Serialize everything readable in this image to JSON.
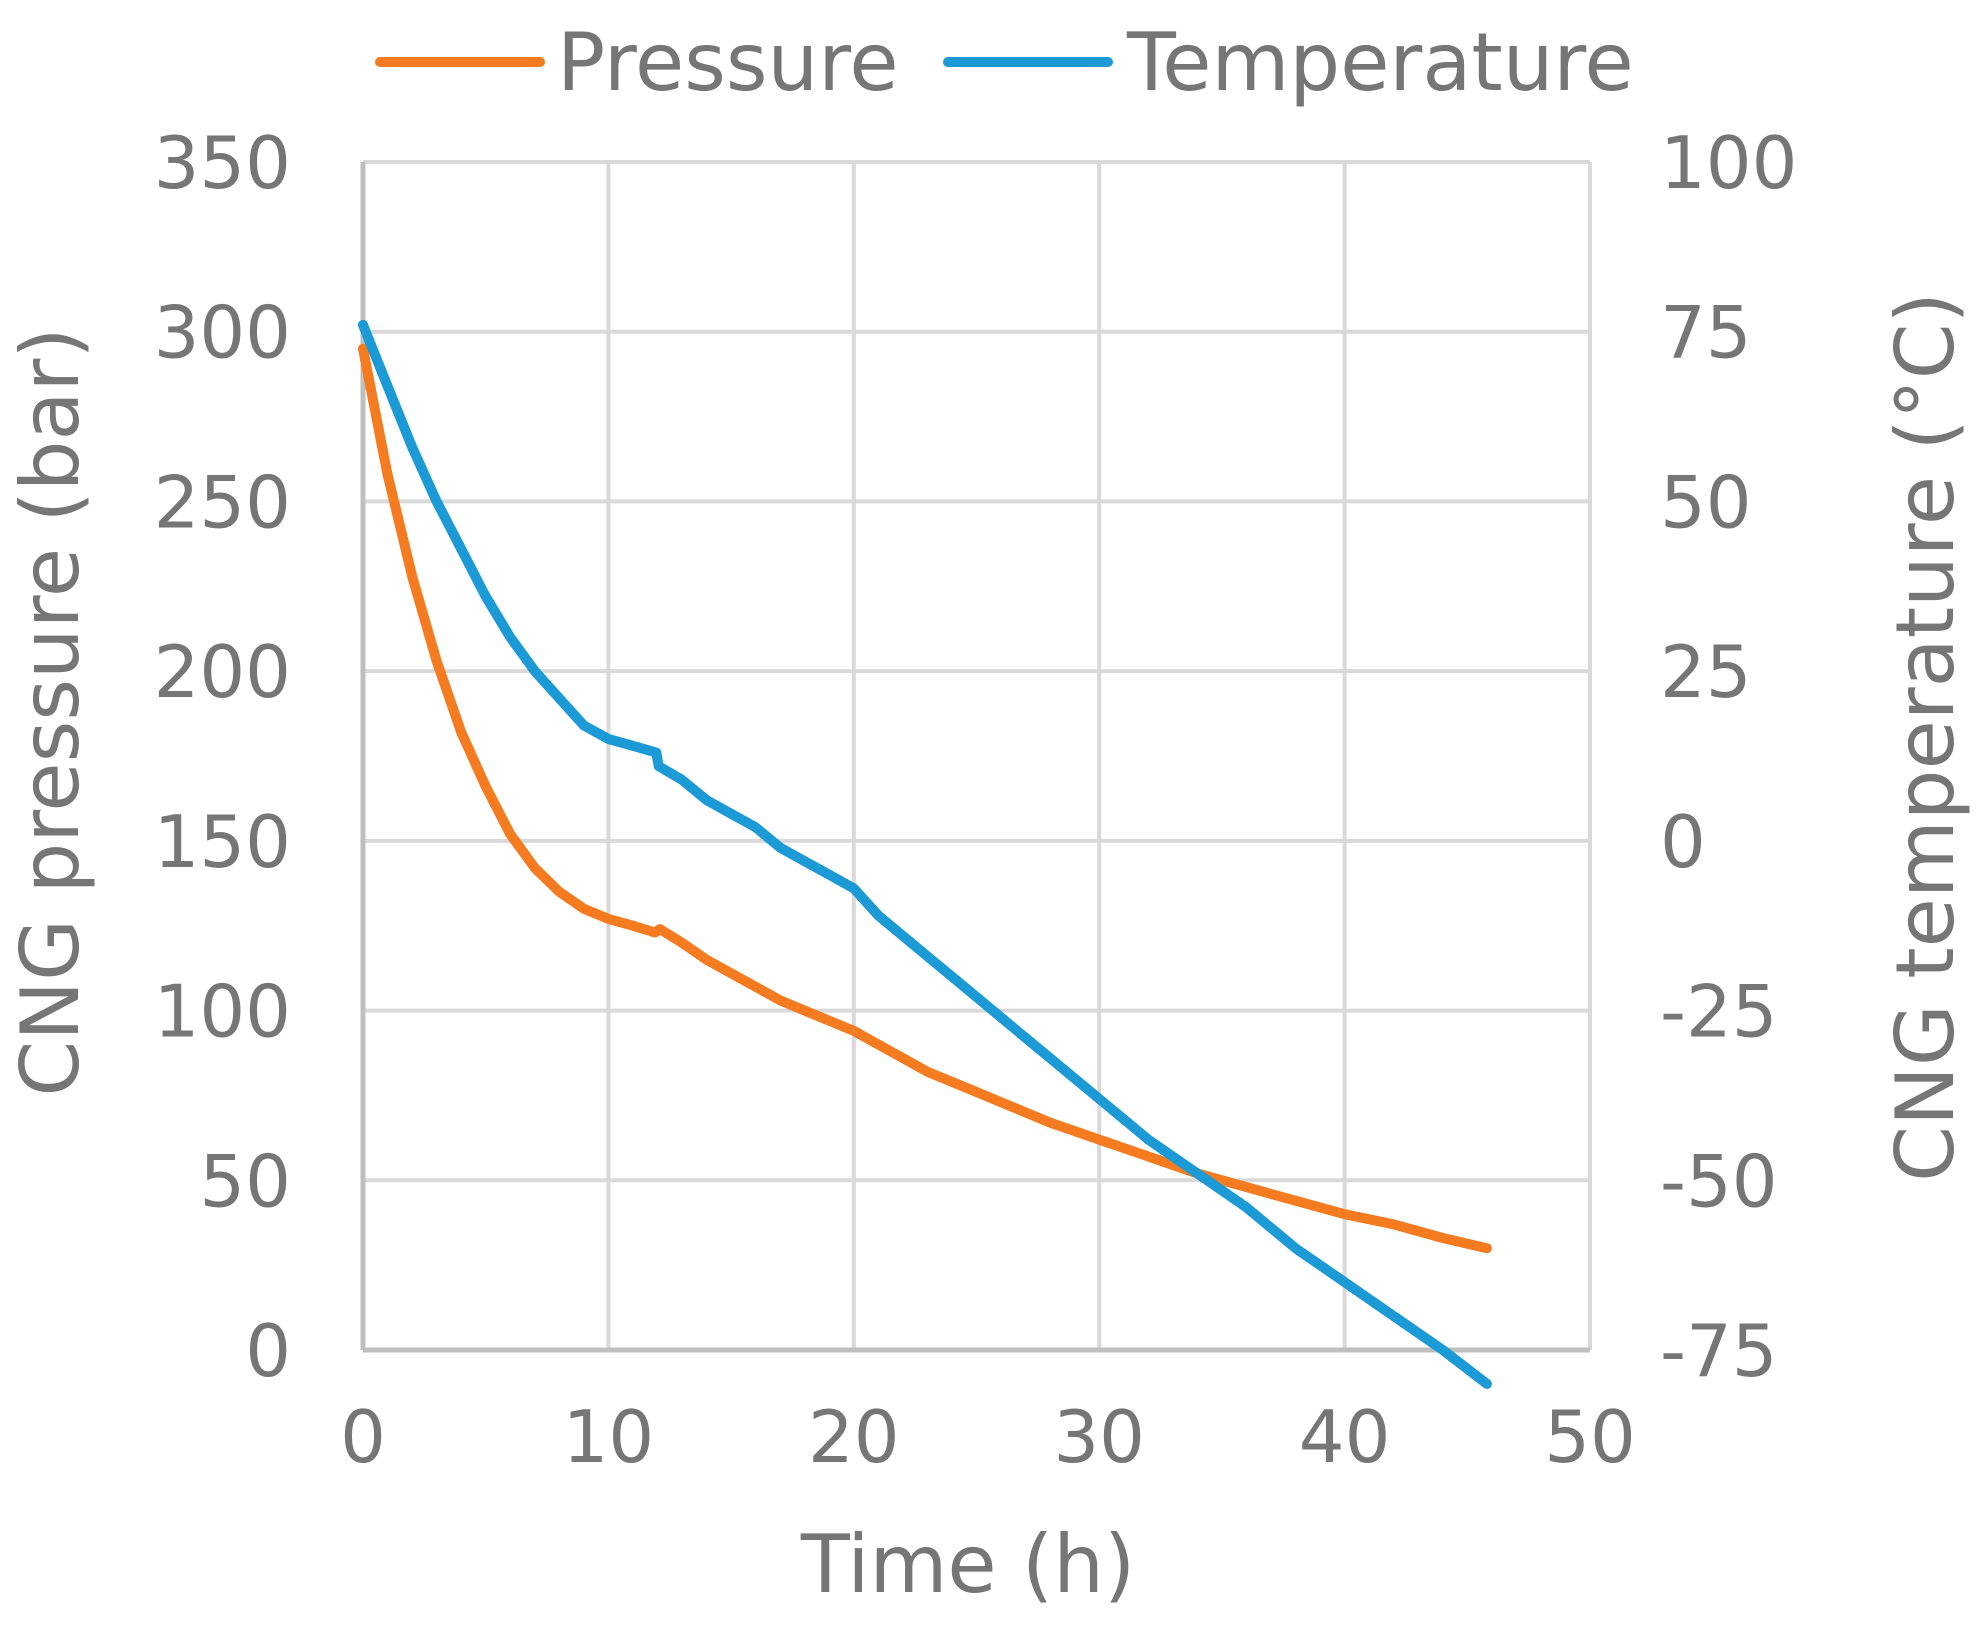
{
  "chart_data": {
    "type": "line",
    "title": "",
    "xlabel": "Time (h)",
    "ylabel": "CNG pressure (bar)",
    "y2label": "CNG temperature (°C)",
    "xlim": [
      0,
      50
    ],
    "ylim": [
      0,
      350
    ],
    "y2lim": [
      -75,
      100
    ],
    "xticks": [
      "0",
      "10",
      "20",
      "30",
      "40",
      "50"
    ],
    "yticks": [
      "0",
      "50",
      "100",
      "150",
      "200",
      "250",
      "300",
      "350"
    ],
    "y2ticks": [
      "-75",
      "-50",
      "-25",
      "0",
      "25",
      "50",
      "75",
      "100"
    ],
    "grid": true,
    "legend_position": "top",
    "colors": {
      "pressure": "#F47B20",
      "temperature": "#1B9AD6",
      "grid": "#D9D9D9",
      "text": "#767676"
    },
    "series": [
      {
        "name": "Pressure",
        "axis": "left",
        "x": [
          0,
          1,
          2,
          3,
          4,
          5,
          6,
          7,
          8,
          9,
          10,
          11,
          11.9,
          12.1,
          13,
          14,
          15,
          16,
          17,
          18,
          19,
          20,
          21,
          22,
          23,
          24,
          25,
          26,
          28,
          30,
          32,
          34,
          36,
          38,
          40,
          42,
          44,
          45.8
        ],
        "y": [
          295,
          258,
          228,
          203,
          182,
          166,
          152,
          142,
          135,
          130,
          127,
          125,
          123,
          124,
          120,
          115,
          111,
          107,
          103,
          100,
          97,
          94,
          90,
          86,
          82,
          79,
          76,
          73,
          67,
          62,
          57,
          52,
          48,
          44,
          40,
          37,
          33,
          30
        ]
      },
      {
        "name": "Temperature",
        "axis": "right",
        "x": [
          0,
          1,
          2,
          3,
          4,
          5,
          6,
          7,
          8,
          9,
          10,
          11,
          11.95,
          12.05,
          13,
          14,
          15,
          16,
          17,
          18,
          19,
          20,
          21,
          22,
          23,
          24,
          25,
          26,
          28,
          30,
          32,
          34,
          36,
          38,
          40,
          42,
          44,
          45.8
        ],
        "y": [
          76,
          67,
          58,
          50,
          43,
          36,
          30,
          25,
          21,
          17,
          15,
          14,
          13,
          11,
          9,
          6,
          4,
          2,
          -1,
          -3,
          -5,
          -7,
          -11,
          -14,
          -17,
          -20,
          -23,
          -26,
          -32,
          -38,
          -44,
          -49,
          -54,
          -60,
          -65,
          -70,
          -75,
          -80
        ]
      }
    ]
  }
}
